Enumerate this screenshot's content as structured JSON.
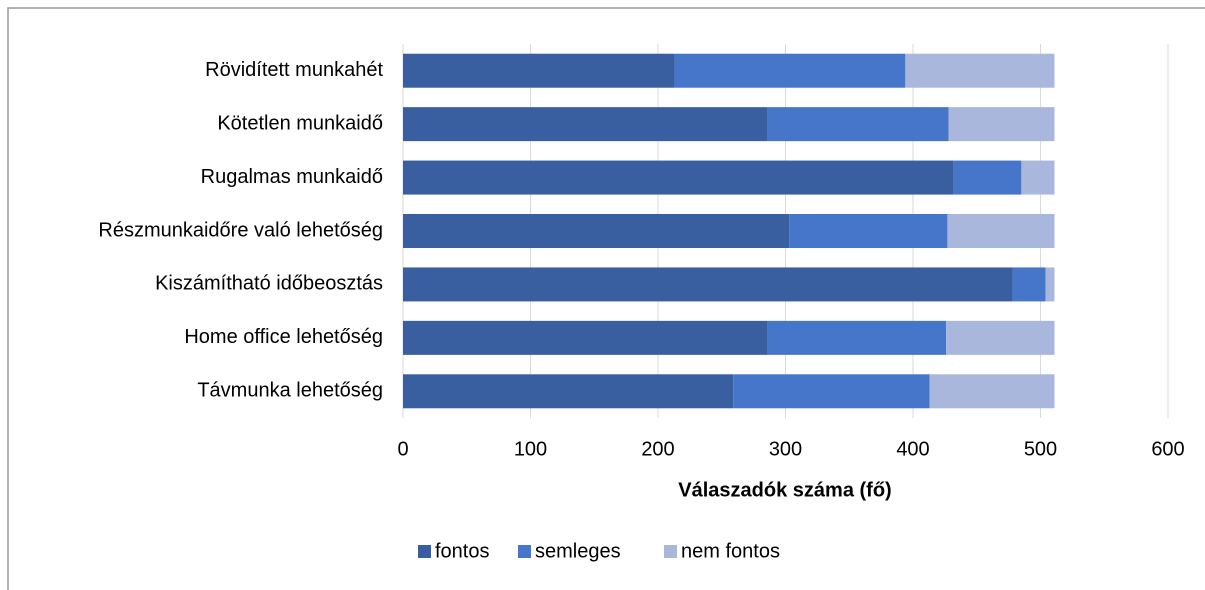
{
  "chart_data": {
    "type": "stacked-bar-horizontal",
    "categories": [
      "Rövidített munkahét",
      "Kötetlen munkaidő",
      "Rugalmas munkaidő",
      "Részmunkaidőre való lehetőség",
      "Kiszámítható időbeosztás",
      "Home office lehetőség",
      "Távmunka lehetőség"
    ],
    "series": [
      {
        "name": "fontos",
        "color": "#3a5fa0",
        "values": [
          213,
          286,
          432,
          303,
          478,
          286,
          259
        ]
      },
      {
        "name": "semleges",
        "color": "#4676c9",
        "values": [
          181,
          142,
          53,
          124,
          26,
          140,
          154
        ]
      },
      {
        "name": "nem fontos",
        "color": "#a9b7dc",
        "values": [
          117,
          83,
          26,
          84,
          7,
          85,
          98
        ]
      }
    ],
    "x_label": "Válaszadók száma (fő)",
    "xlim": [
      0,
      600
    ],
    "xticks": [
      0,
      100,
      200,
      300,
      400,
      500,
      600
    ],
    "grid": true,
    "legend": "bottom"
  }
}
